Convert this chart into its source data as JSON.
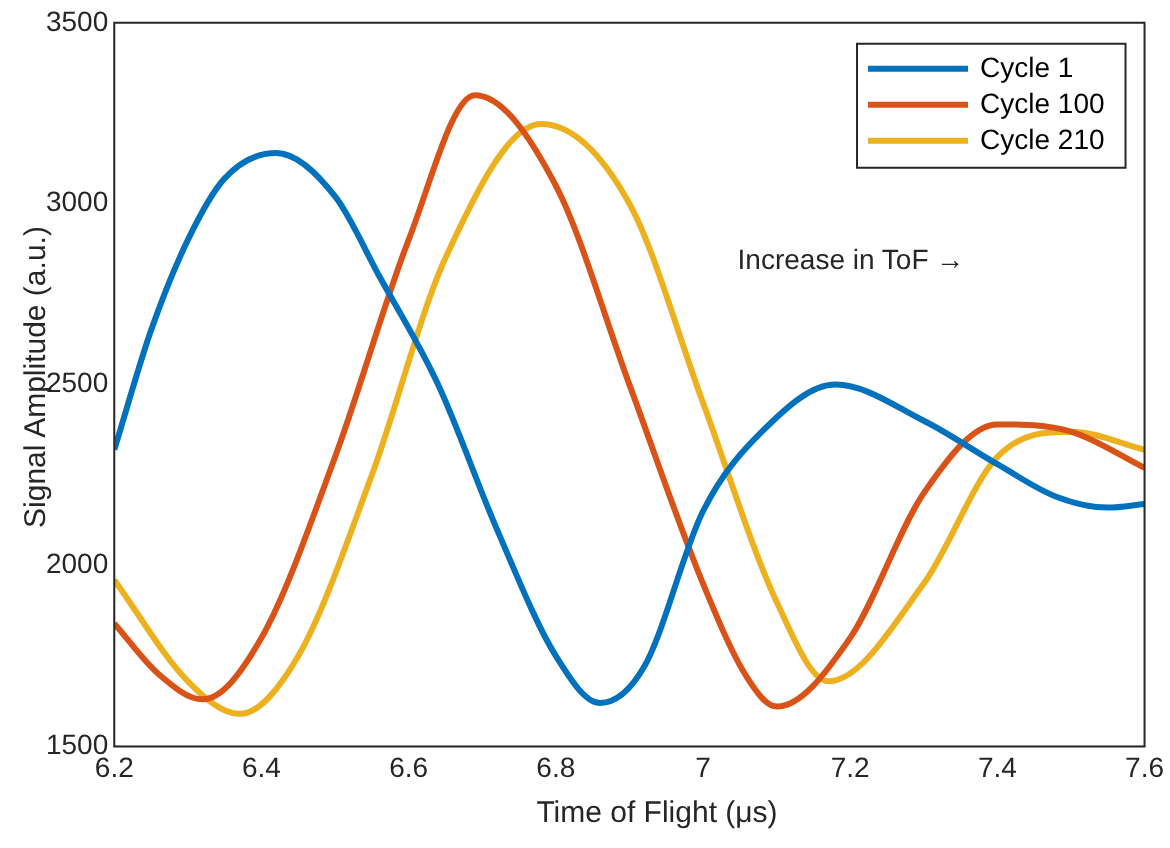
{
  "chart_data": {
    "type": "line",
    "xlabel": "Time of Flight (μs)",
    "ylabel": "Signal Amplitude (a.u.)",
    "xlim": [
      6.2,
      7.6
    ],
    "xticks": [
      6.2,
      6.4,
      6.6,
      6.8,
      7,
      7.2,
      7.4,
      7.6
    ],
    "ylim": [
      1500,
      3500
    ],
    "yticks": [
      1500,
      2000,
      2500,
      3000,
      3500
    ],
    "grid": false,
    "legend": "top right",
    "marker": "none",
    "line_style": "solid",
    "annotations": [
      "Increase in ToF →"
    ],
    "series": [
      {
        "name": "Cycle 1",
        "color": "#0072bd",
        "x": [
          6.2,
          6.25,
          6.3,
          6.35,
          6.42,
          6.5,
          6.56,
          6.64,
          6.72,
          6.8,
          6.86,
          6.92,
          7.0,
          7.08,
          7.18,
          7.3,
          7.4,
          7.48,
          7.55,
          7.6
        ],
        "values": [
          2320,
          2650,
          2900,
          3070,
          3140,
          3020,
          2800,
          2500,
          2100,
          1750,
          1620,
          1720,
          2150,
          2370,
          2500,
          2400,
          2280,
          2190,
          2160,
          2170
        ]
      },
      {
        "name": "Cycle 100",
        "color": "#d95319",
        "x": [
          6.2,
          6.26,
          6.32,
          6.4,
          6.5,
          6.6,
          6.69,
          6.8,
          6.9,
          7.0,
          7.06,
          7.1,
          7.2,
          7.3,
          7.4,
          7.5,
          7.6
        ],
        "values": [
          1840,
          1700,
          1630,
          1800,
          2300,
          2900,
          3300,
          3050,
          2500,
          1950,
          1690,
          1610,
          1800,
          2200,
          2390,
          2370,
          2270
        ]
      },
      {
        "name": "Cycle 210",
        "color": "#edb120",
        "x": [
          6.2,
          6.3,
          6.37,
          6.45,
          6.55,
          6.65,
          6.78,
          6.9,
          7.0,
          7.1,
          7.17,
          7.3,
          7.4,
          7.5,
          7.6
        ],
        "values": [
          1960,
          1680,
          1590,
          1750,
          2250,
          2850,
          3220,
          3000,
          2450,
          1900,
          1680,
          1950,
          2300,
          2370,
          2320
        ]
      }
    ]
  }
}
